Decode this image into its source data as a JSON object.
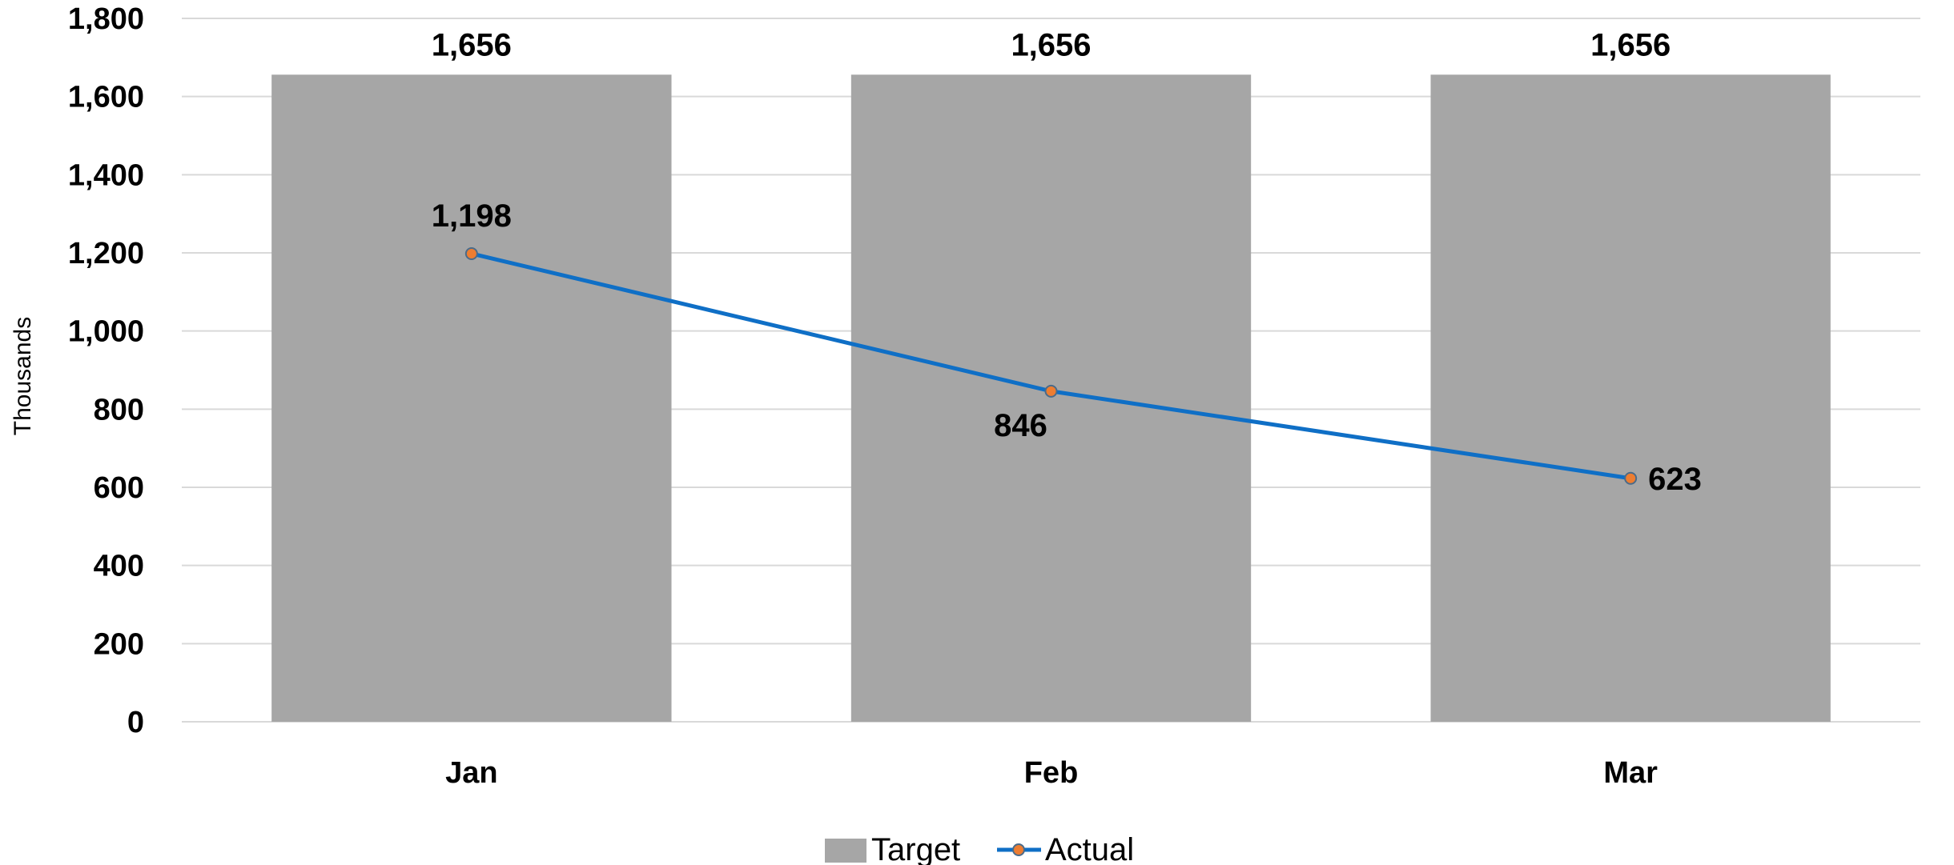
{
  "chart_data": {
    "type": "bar+line",
    "categories": [
      "Jan",
      "Feb",
      "Mar"
    ],
    "series": [
      {
        "name": "Target",
        "type": "bar",
        "values": [
          1656,
          1656,
          1656
        ],
        "labels": [
          "1,656",
          "1,656",
          "1,656"
        ],
        "color": "#a6a6a6"
      },
      {
        "name": "Actual",
        "type": "line",
        "values": [
          1198,
          846,
          623
        ],
        "labels": [
          "1,198",
          "846",
          "623"
        ],
        "color": "#0f6fc6",
        "marker_color": "#ed7d31"
      }
    ],
    "ylabel": "Thousands",
    "ylim": [
      0,
      1800
    ],
    "yticks": [
      0,
      200,
      400,
      600,
      800,
      1000,
      1200,
      1400,
      1600,
      1800
    ],
    "ytick_labels": [
      "0",
      "200",
      "400",
      "600",
      "800",
      "1,000",
      "1,200",
      "1,400",
      "1,600",
      "1,800"
    ],
    "grid": true,
    "gridline_color": "#d9d9d9",
    "legend_position": "bottom"
  }
}
